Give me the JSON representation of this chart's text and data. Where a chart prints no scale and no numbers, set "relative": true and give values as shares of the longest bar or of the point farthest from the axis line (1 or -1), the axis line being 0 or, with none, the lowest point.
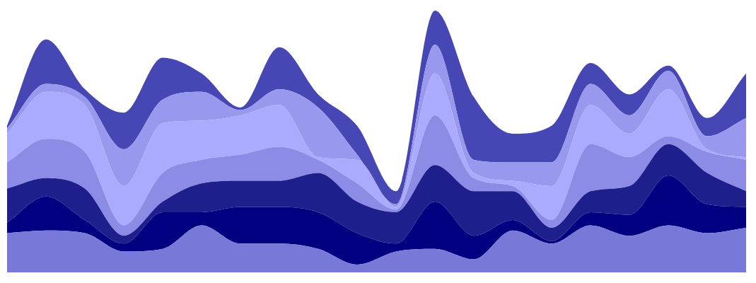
{
  "chart_data": {
    "type": "area",
    "stacked": true,
    "relative": true,
    "categories": [
      null,
      null,
      null,
      null,
      null,
      null,
      null,
      null,
      null,
      null,
      null,
      null,
      null,
      null,
      null,
      null,
      null,
      null,
      null,
      null
    ],
    "series": [
      {
        "color": "#7878d8",
        "values": [
          0.15,
          0.16,
          0.15,
          0.08,
          0.09,
          0.18,
          0.11,
          0.11,
          0.09,
          0.03,
          0.08,
          0.09,
          0.05,
          0.16,
          0.11,
          0.18,
          0.14,
          0.18,
          0.15,
          0.17
        ]
      },
      {
        "color": "#000080",
        "values": [
          0.04,
          0.13,
          0.05,
          0.03,
          0.14,
          0.05,
          0.14,
          0.14,
          0.14,
          0.12,
          0.03,
          0.18,
          0.09,
          0.04,
          0.01,
          0.05,
          0.08,
          0.19,
          0.11,
          0.08
        ]
      },
      {
        "color": "#1e1e8c",
        "values": [
          0.13,
          0.07,
          0.12,
          0.03,
          0.04,
          0.11,
          0.1,
          0.1,
          0.15,
          0.12,
          0.12,
          0.14,
          0.17,
          0.11,
          0.05,
          0.08,
          0.11,
          0.12,
          0.12,
          0.06
        ]
      },
      {
        "color": "#8c8ce6",
        "values": [
          0.1,
          0.15,
          0.14,
          0.04,
          0.11,
          0.09,
          0.1,
          0.13,
          0.05,
          0.07,
          0.01,
          0.19,
          0.05,
          0.02,
          0.03,
          0.18,
          0.11,
          0.03,
          0.08,
          0.12
        ]
      },
      {
        "color": "#aaaaff",
        "values": [
          0.11,
          0.18,
          0.18,
          0.15,
          0.19,
          0.15,
          0.15,
          0.16,
          0.01,
          0.09,
          0.01,
          0.16,
          0.02,
          0.02,
          0.13,
          0.15,
          0.09,
          0.18,
          0.01,
          0.01
        ]
      },
      {
        "color": "#9898ee",
        "values": [
          0.02,
          0.03,
          0.03,
          0.14,
          0.09,
          0.11,
          0.02,
          0.06,
          0.19,
          0.02,
          0.01,
          0.11,
          0.05,
          0.07,
          0.09,
          0.08,
          0.07,
          0.07,
          0.05,
          0.15
        ]
      },
      {
        "color": "#4646b4",
        "values": [
          0.01,
          0.17,
          0.03,
          0.14,
          0.16,
          0.07,
          0.01,
          0.16,
          0.05,
          0.11,
          0.05,
          0.13,
          0.24,
          0.11,
          0.14,
          0.08,
          0.08,
          0.02,
          0.07,
          0.17
        ]
      }
    ]
  }
}
